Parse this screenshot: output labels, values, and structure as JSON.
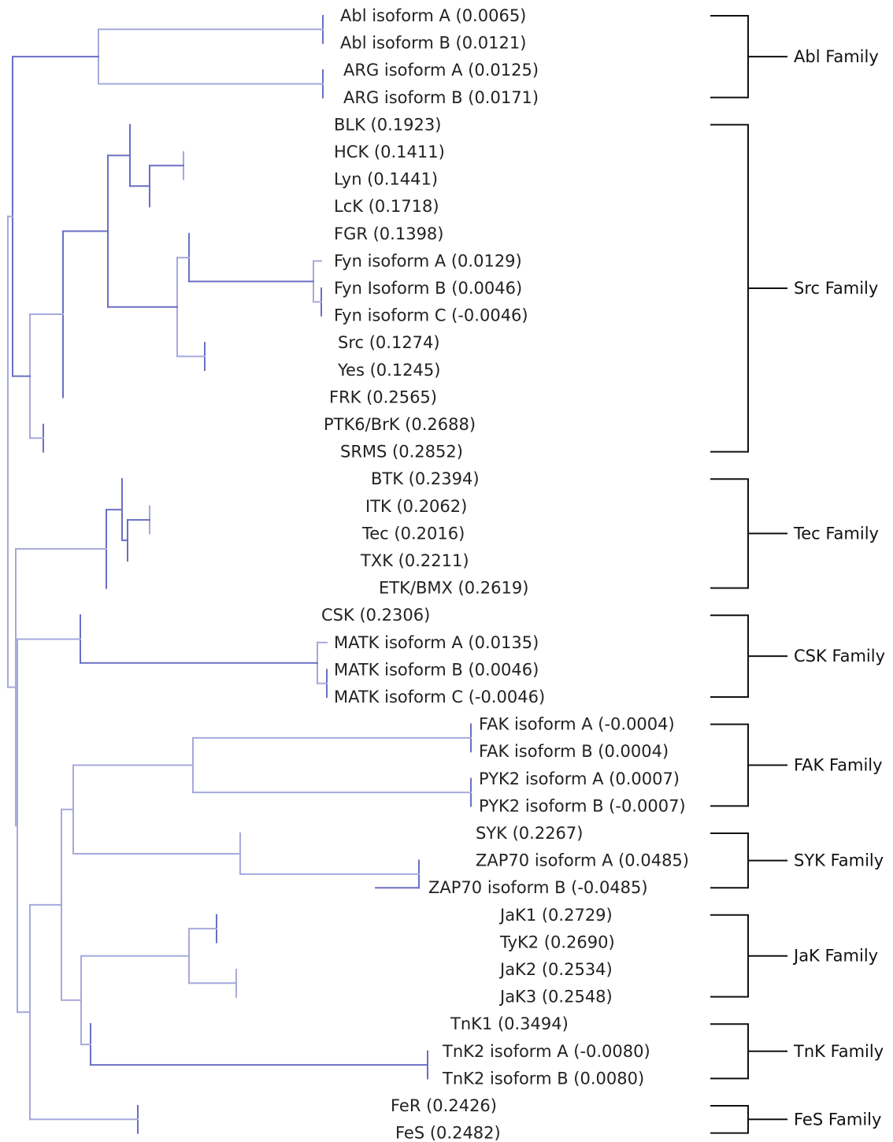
{
  "colors": {
    "edge_dark": "#6a6fc4",
    "edge_light": "#a6a9dc",
    "text": "#222222",
    "bracket": "#111111"
  },
  "leaves": [
    {
      "label": "Abl isoform A (0.0065)"
    },
    {
      "label": "Abl isoform B (0.0121)"
    },
    {
      "label": "ARG isoform A (0.0125)"
    },
    {
      "label": "ARG isoform B (0.0171)"
    },
    {
      "label": "BLK (0.1923)"
    },
    {
      "label": "HCK (0.1411)"
    },
    {
      "label": "Lyn (0.1441)"
    },
    {
      "label": "LcK (0.1718)"
    },
    {
      "label": "FGR (0.1398)"
    },
    {
      "label": "Fyn isoform A (0.0129)"
    },
    {
      "label": "Fyn Isoform B (0.0046)"
    },
    {
      "label": "Fyn isoform C (-0.0046)"
    },
    {
      "label": "Src (0.1274)"
    },
    {
      "label": "Yes (0.1245)"
    },
    {
      "label": "FRK (0.2565)"
    },
    {
      "label": "PTK6/BrK (0.2688)"
    },
    {
      "label": "SRMS (0.2852)"
    },
    {
      "label": "BTK (0.2394)"
    },
    {
      "label": "ITK (0.2062)"
    },
    {
      "label": "Tec (0.2016)"
    },
    {
      "label": "TXK (0.2211)"
    },
    {
      "label": "ETK/BMX (0.2619)"
    },
    {
      "label": "CSK (0.2306)"
    },
    {
      "label": "MATK isoform A (0.0135)"
    },
    {
      "label": "MATK isoform B (0.0046)"
    },
    {
      "label": "MATK isoform C (-0.0046)"
    },
    {
      "label": "FAK isoform A (-0.0004)"
    },
    {
      "label": "FAK isoform B (0.0004)"
    },
    {
      "label": "PYK2 isoform A (0.0007)"
    },
    {
      "label": "PYK2 isoform B (-0.0007)"
    },
    {
      "label": "SYK (0.2267)"
    },
    {
      "label": "ZAP70 isoform A (0.0485)"
    },
    {
      "label": "ZAP70 isoform B (-0.0485)"
    },
    {
      "label": "JaK1 (0.2729)"
    },
    {
      "label": "TyK2 (0.2690)"
    },
    {
      "label": "JaK2 (0.2534)"
    },
    {
      "label": "JaK3 (0.2548)"
    },
    {
      "label": "TnK1 (0.3494)"
    },
    {
      "label": "TnK2 isoform A (-0.0080)"
    },
    {
      "label": "TnK2 isoform B (0.0080)"
    },
    {
      "label": "FeR (0.2426)"
    },
    {
      "label": "FeS (0.2482)"
    }
  ],
  "families": [
    {
      "name": "Abl Family"
    },
    {
      "name": "Src Family"
    },
    {
      "name": "Tec Family"
    },
    {
      "name": "CSK Family"
    },
    {
      "name": "FAK Family"
    },
    {
      "name": "SYK Family"
    },
    {
      "name": "JaK Family"
    },
    {
      "name": "TnK Family"
    },
    {
      "name": "FeS Family"
    }
  ]
}
